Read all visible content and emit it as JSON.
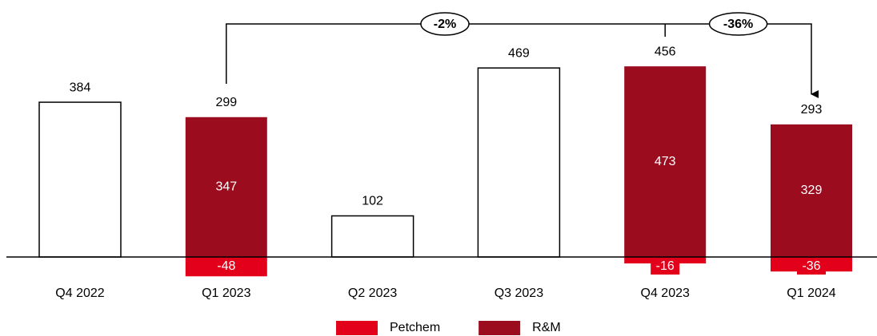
{
  "chart_data": {
    "type": "bar",
    "categories": [
      "Q4 2022",
      "Q1 2023",
      "Q2 2023",
      "Q3 2023",
      "Q4 2023",
      "Q1 2024"
    ],
    "totals": [
      384,
      299,
      102,
      469,
      456,
      293
    ],
    "series": [
      {
        "name": "Petchem",
        "color": "#e3001b",
        "values": [
          null,
          -48,
          null,
          null,
          -16,
          -36
        ]
      },
      {
        "name": "R&M",
        "color": "#9b0c1f",
        "values": [
          null,
          347,
          null,
          null,
          473,
          329
        ]
      }
    ],
    "annotations": [
      {
        "text": "-2%",
        "from": "Q1 2023",
        "to": "Q1 2024"
      },
      {
        "text": "-36%",
        "from": "Q4 2023",
        "to": "Q1 2024"
      }
    ],
    "ylim": [
      -60,
      560
    ],
    "legend": "bottom"
  }
}
